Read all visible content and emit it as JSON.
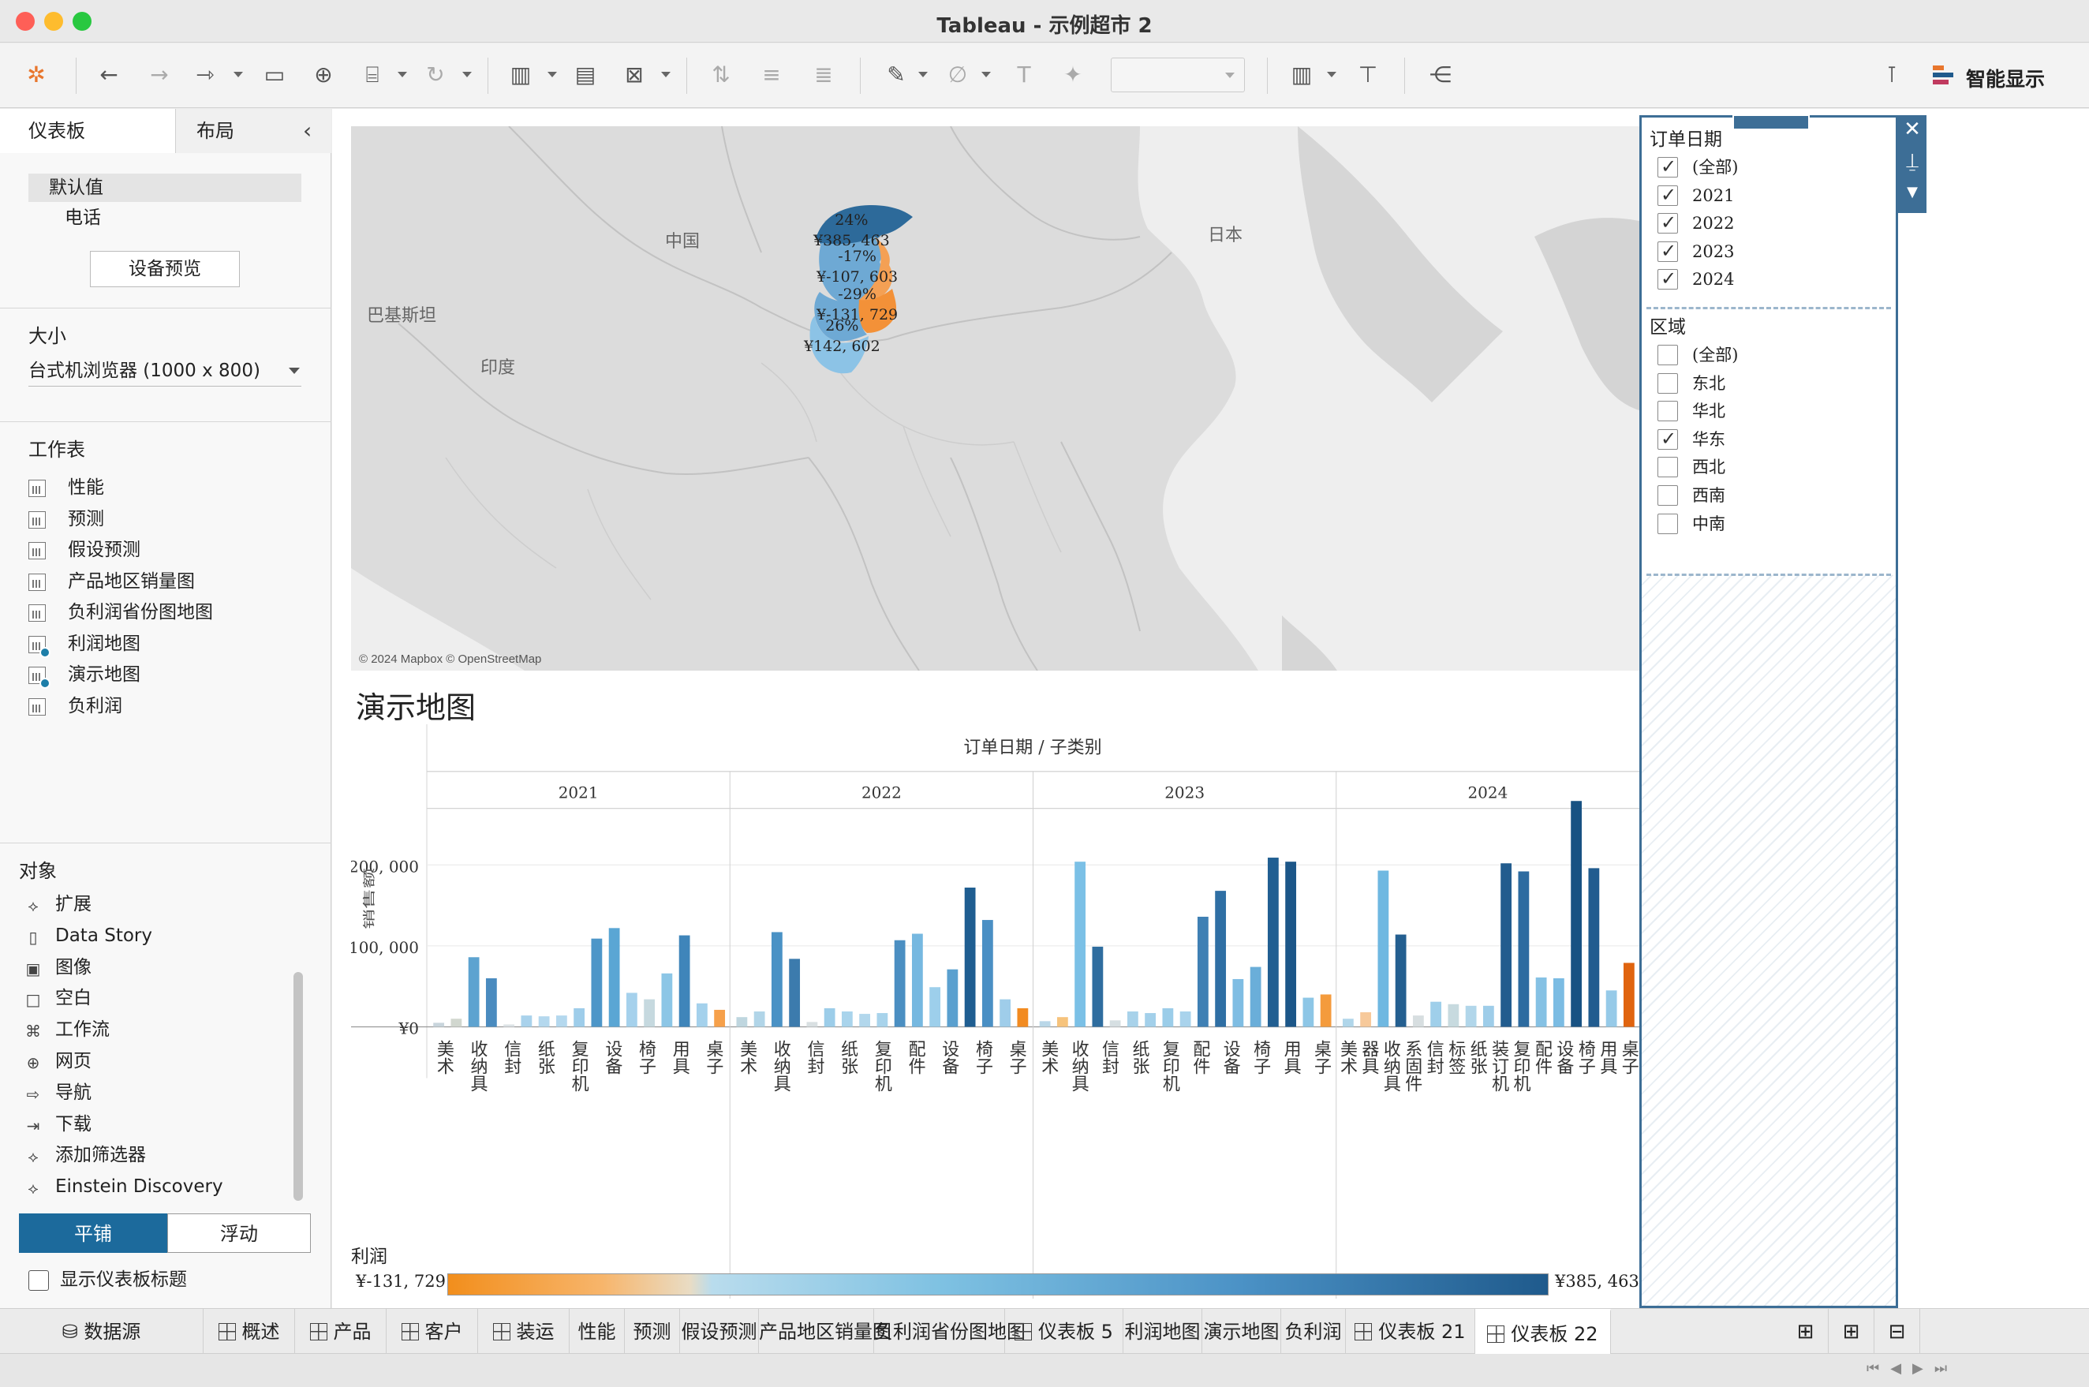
{
  "window": {
    "title": "Tableau - 示例超市 2"
  },
  "toolbar": {
    "smart_show_label": "智能显示",
    "icons": [
      "tableau-logo-icon",
      "undo-icon",
      "redo-icon",
      "data-source-icon",
      "save-icon",
      "new-datasource-icon",
      "pause-icon",
      "refresh-icon",
      "new-worksheet-icon",
      "duplicate-icon",
      "clear-icon",
      "swap-icon",
      "sort-ascending-icon",
      "sort-descending-icon",
      "highlight-icon",
      "annotate-icon",
      "labels-icon",
      "pin-icon",
      "fit-select",
      "show-cards-icon",
      "presentation-icon",
      "share-icon",
      "smart-show-icon"
    ]
  },
  "left_panel": {
    "tab_dashboard": "仪表板",
    "tab_layout": "布局",
    "device_default": "默认值",
    "device_phone": "电话",
    "device_preview_btn": "设备预览",
    "size_title": "大小",
    "size_value": "台式机浏览器 (1000 x 800)",
    "sheets_title": "工作表",
    "sheets": [
      {
        "label": "性能",
        "used": false
      },
      {
        "label": "预测",
        "used": false
      },
      {
        "label": "假设预测",
        "used": false
      },
      {
        "label": "产品地区销量图",
        "used": false
      },
      {
        "label": "负利润省份图地图",
        "used": false
      },
      {
        "label": "利润地图",
        "used": true
      },
      {
        "label": "演示地图",
        "used": true
      },
      {
        "label": "负利润",
        "used": false
      }
    ],
    "objects_title": "对象",
    "objects": [
      {
        "label": "扩展",
        "icon": "puzzle-icon"
      },
      {
        "label": "Data Story",
        "icon": "book-icon"
      },
      {
        "label": "图像",
        "icon": "image-icon"
      },
      {
        "label": "空白",
        "icon": "blank-icon"
      },
      {
        "label": "工作流",
        "icon": "workflow-icon"
      },
      {
        "label": "网页",
        "icon": "globe-icon"
      },
      {
        "label": "导航",
        "icon": "navigation-icon"
      },
      {
        "label": "下载",
        "icon": "download-icon"
      },
      {
        "label": "添加筛选器",
        "icon": "puzzle-icon"
      },
      {
        "label": "Einstein Discovery",
        "icon": "einstein-icon"
      }
    ],
    "tile_btn": "平铺",
    "float_btn": "浮动",
    "show_title_label": "显示仪表板标题"
  },
  "map": {
    "credit": "© 2024 Mapbox © OpenStreetMap",
    "labels": {
      "china": "中国",
      "japan": "日本",
      "pakistan": "巴基斯坦",
      "india": "印度"
    },
    "provinces": [
      {
        "pct": "24%",
        "value": "¥385, 463",
        "color": "#2d6a9a"
      },
      {
        "pct": "-17%",
        "value": "¥-107, 603",
        "color": "#f4a054"
      },
      {
        "pct": "-29%",
        "value": "¥-131, 729",
        "color": "#f39138"
      },
      {
        "pct": "26%",
        "value": "¥142, 602",
        "color": "#8cc3e6"
      }
    ]
  },
  "chart_title": "演示地图",
  "legend": {
    "title": "利润",
    "min": "¥-131, 729",
    "max": "¥385, 463"
  },
  "chart_data": {
    "type": "bar",
    "header": "订单日期  /  子类别",
    "ylabel": "销售额",
    "ylim": [
      0,
      280000
    ],
    "yticks": [
      {
        "value": 0,
        "label": "¥0"
      },
      {
        "value": 100000,
        "label": "¥100, 000"
      },
      {
        "value": 200000,
        "label": "¥200, 000"
      }
    ],
    "years": [
      {
        "year": "2021",
        "bars": [
          5000,
          10000,
          86000,
          60000,
          3000,
          14000,
          13000,
          14000,
          23000,
          109000,
          122000,
          42000,
          34000,
          66000,
          113000,
          29000,
          21000
        ]
      },
      {
        "year": "2022",
        "bars": [
          12000,
          19000,
          117000,
          84000,
          6000,
          23000,
          19000,
          16000,
          17000,
          107000,
          115000,
          49000,
          71000,
          172000,
          132000,
          34000,
          23000
        ]
      },
      {
        "year": "2023",
        "bars": [
          7000,
          12000,
          204000,
          99000,
          8000,
          19000,
          17000,
          23000,
          19000,
          136000,
          168000,
          59000,
          74000,
          209000,
          204000,
          36000,
          40000
        ]
      },
      {
        "year": "2024",
        "bars": [
          10000,
          18000,
          193000,
          114000,
          14000,
          31000,
          28000,
          26000,
          26000,
          202000,
          192000,
          61000,
          60000,
          279000,
          196000,
          45000,
          79000
        ]
      }
    ],
    "bar_colors": [
      [
        "#c9d5dc",
        "#d1d7cf",
        "#5da3d0",
        "#4a8bbf",
        "#dde3e6",
        "#a9d2ec",
        "#b4d8ee",
        "#b4d8ee",
        "#9ecdea",
        "#4d96c8",
        "#5aa6d4",
        "#a5d1ec",
        "#c6d9df",
        "#8cc6e6",
        "#3f85ba",
        "#a4d1ec",
        "#f6a04a"
      ],
      [
        "#bfd6df",
        "#b1d5e8",
        "#4a92c5",
        "#3c7bad",
        "#d9e0e2",
        "#9ccde9",
        "#a9d4ec",
        "#b2d7ec",
        "#a8d3eb",
        "#4b8fc2",
        "#76b8e0",
        "#9dcfeb",
        "#5aa0cf",
        "#1f5e91",
        "#4a8fc4",
        "#9fcdea",
        "#f28b21"
      ],
      [
        "#b9d7e8",
        "#f6c37c",
        "#7bc0e6",
        "#2f6d9f",
        "#d6dfe2",
        "#a8d2ea",
        "#a3d0ea",
        "#9bcde9",
        "#a9d3ec",
        "#3f80b4",
        "#2f6fa4",
        "#7fbde3",
        "#6aaed9",
        "#215f92",
        "#1c5688",
        "#8dc6e6",
        "#f49b3c"
      ],
      [
        "#b0d6ea",
        "#f7c99a",
        "#6fb8e1",
        "#245f90",
        "#d7dee0",
        "#9fcfea",
        "#c7dadf",
        "#b1d6ea",
        "#9ecde9",
        "#225c8e",
        "#2d6ba0",
        "#85c1e4",
        "#7bbce3",
        "#185283",
        "#215c8f",
        "#96cae8",
        "#e0640f"
      ]
    ],
    "subcategories": [
      [
        "美术",
        "收纳具",
        "信封",
        "纸张",
        "复印机",
        "设备",
        "椅子",
        "用具",
        "桌子"
      ],
      [
        "美术",
        "收纳具",
        "信封",
        "纸张",
        "复印机",
        "配件",
        "设备",
        "椅子",
        "桌子"
      ],
      [
        "美术",
        "收纳具",
        "信封",
        "纸张",
        "复印机",
        "配件",
        "设备",
        "椅子",
        "用具",
        "桌子"
      ],
      [
        "美术",
        "器具",
        "收纳具",
        "系固件",
        "信封",
        "标签",
        "纸张",
        "装订机",
        "复印机",
        "配件",
        "设备",
        "椅子",
        "用具",
        "桌子"
      ]
    ]
  },
  "filters": {
    "date": {
      "title": "订单日期",
      "items": [
        {
          "label": "(全部)",
          "checked": true
        },
        {
          "label": "2021",
          "checked": true
        },
        {
          "label": "2022",
          "checked": true
        },
        {
          "label": "2023",
          "checked": true
        },
        {
          "label": "2024",
          "checked": true
        }
      ]
    },
    "region": {
      "title": "区域",
      "items": [
        {
          "label": "(全部)",
          "checked": false
        },
        {
          "label": "东北",
          "checked": false
        },
        {
          "label": "华北",
          "checked": false
        },
        {
          "label": "华东",
          "checked": true
        },
        {
          "label": "西北",
          "checked": false
        },
        {
          "label": "西南",
          "checked": false
        },
        {
          "label": "中南",
          "checked": false
        }
      ]
    }
  },
  "tabs": [
    {
      "label": "数据源",
      "type": "datasource"
    },
    {
      "label": "概述",
      "type": "dashboard"
    },
    {
      "label": "产品",
      "type": "dashboard"
    },
    {
      "label": "客户",
      "type": "dashboard"
    },
    {
      "label": "装运",
      "type": "dashboard"
    },
    {
      "label": "性能",
      "type": "sheet"
    },
    {
      "label": "预测",
      "type": "sheet"
    },
    {
      "label": "假设预测",
      "type": "sheet"
    },
    {
      "label": "产品地区销量图",
      "type": "sheet"
    },
    {
      "label": "负利润省份图地图",
      "type": "sheet"
    },
    {
      "label": "仪表板 5",
      "type": "dashboard"
    },
    {
      "label": "利润地图",
      "type": "sheet"
    },
    {
      "label": "演示地图",
      "type": "sheet"
    },
    {
      "label": "负利润",
      "type": "sheet"
    },
    {
      "label": "仪表板 21",
      "type": "dashboard"
    },
    {
      "label": "仪表板 22",
      "type": "dashboard",
      "active": true
    }
  ]
}
